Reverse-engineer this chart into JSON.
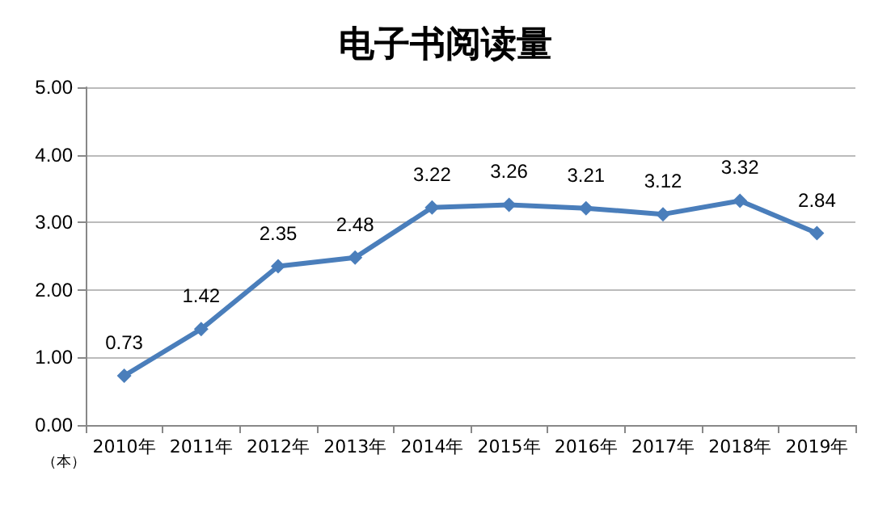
{
  "chart_data": {
    "type": "line",
    "title": "电子书阅读量",
    "ylabel": "（本）",
    "categories": [
      "2010年",
      "2011年",
      "2012年",
      "2013年",
      "2014年",
      "2015年",
      "2016年",
      "2017年",
      "2018年",
      "2019年"
    ],
    "series": [
      {
        "color": "#4a7ebb",
        "values": [
          0.73,
          1.42,
          2.35,
          2.48,
          3.22,
          3.26,
          3.21,
          3.12,
          3.32,
          2.84
        ]
      }
    ],
    "ylim": [
      0,
      5
    ],
    "yticks": [
      {
        "value": 0,
        "label": "0.00"
      },
      {
        "value": 1,
        "label": "1.00"
      },
      {
        "value": 2,
        "label": "2.00"
      },
      {
        "value": 3,
        "label": "3.00"
      },
      {
        "value": 4,
        "label": "4.00"
      },
      {
        "value": 5,
        "label": "5.00"
      }
    ],
    "grid": "y",
    "marker": "diamond",
    "data_labels": true
  }
}
